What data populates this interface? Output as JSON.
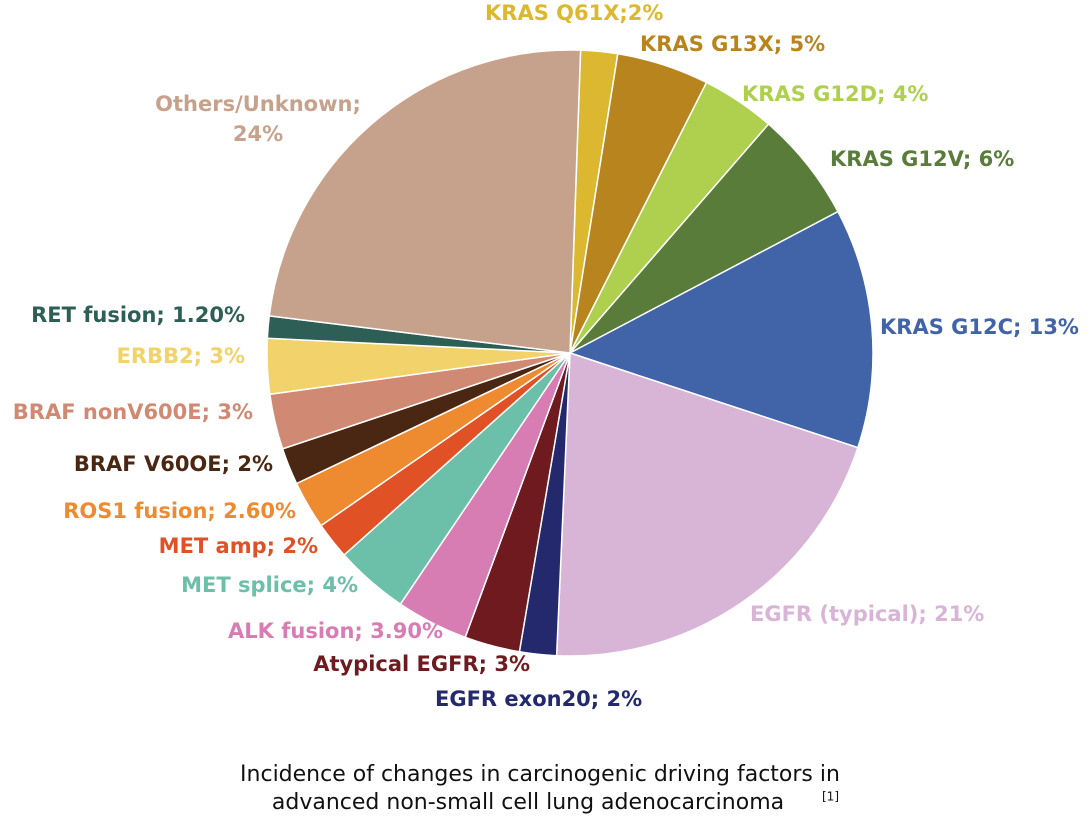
{
  "chart_data": {
    "type": "pie",
    "title_lines": [
      "Incidence of changes in carcinogenic driving factors in",
      "advanced non-small cell lung adenocarcinoma"
    ],
    "title_ref": "[1]",
    "categories": [
      "KRAS Q61X;2%",
      "KRAS G13X; 5%",
      "KRAS G12D; 4%",
      "KRAS G12V; 6%",
      "KRAS G12C; 13%",
      "EGFR (typical); 21%",
      "EGFR exon20; 2%",
      "Atypical EGFR; 3%",
      "ALK fusion; 3.90%",
      "MET splice; 4%",
      "MET amp; 2%",
      "ROS1 fusion; 2.60%",
      "BRAF V60OE; 2%",
      "BRAF nonV600E; 3%",
      "ERBB2; 3%",
      "RET fusion; 1.20%",
      "Others/Unknown; 24%"
    ],
    "values": [
      2,
      5,
      4,
      6,
      13,
      21,
      2,
      3,
      3.9,
      4,
      2,
      2.6,
      2,
      3,
      3,
      1.2,
      24
    ],
    "colors": [
      "#dbb830",
      "#b8841e",
      "#aed04e",
      "#5a7c3a",
      "#4164a8",
      "#d8b4d6",
      "#24296e",
      "#6e1a1e",
      "#d87cb4",
      "#6cbfa8",
      "#e05226",
      "#ee8a30",
      "#4a2712",
      "#d08a74",
      "#f2d26a",
      "#2d5f57",
      "#c6a28c"
    ]
  }
}
